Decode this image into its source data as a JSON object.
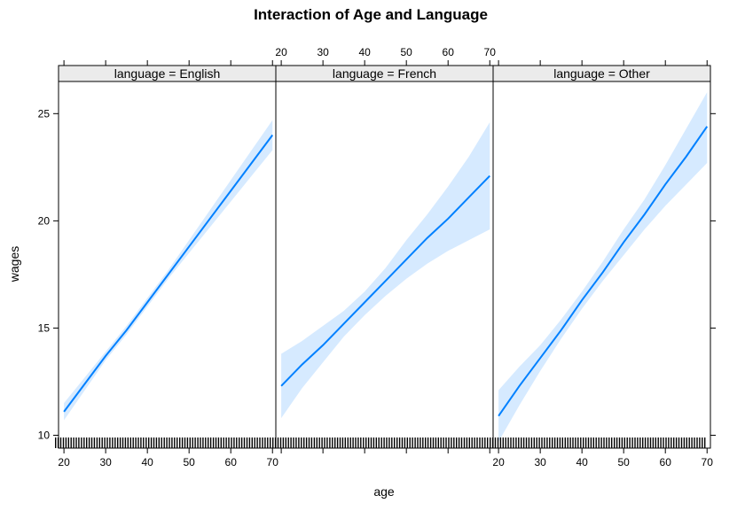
{
  "chart_data": {
    "type": "line",
    "title": "Interaction of Age and Language",
    "xlabel": "age",
    "ylabel": "wages",
    "xlim": [
      18.7,
      70.8
    ],
    "ylim": [
      9.4,
      26.5
    ],
    "x_ticks": [
      20,
      30,
      40,
      50,
      60,
      70
    ],
    "x_tick_labels": [
      "20",
      "30",
      "40",
      "50",
      "60",
      "70"
    ],
    "y_ticks": [
      10,
      15,
      20,
      25
    ],
    "y_tick_labels": [
      "10",
      "15",
      "20",
      "25"
    ],
    "grid": false,
    "line_color": "#0080ff",
    "band_color": "#d6eaff",
    "rug": true,
    "panels": [
      {
        "strip": "language = English",
        "x": [
          20,
          25,
          30,
          35,
          40,
          45,
          50,
          55,
          60,
          65,
          70
        ],
        "y": [
          11.1,
          12.4,
          13.7,
          14.9,
          16.2,
          17.5,
          18.8,
          20.1,
          21.4,
          22.7,
          24.0
        ],
        "lower": [
          10.7,
          12.1,
          13.5,
          14.7,
          16.0,
          17.3,
          18.5,
          19.7,
          20.9,
          22.1,
          23.3
        ],
        "upper": [
          11.5,
          12.7,
          13.9,
          15.1,
          16.4,
          17.7,
          19.1,
          20.5,
          21.9,
          23.3,
          24.7
        ]
      },
      {
        "strip": "language = French",
        "x": [
          20,
          25,
          30,
          35,
          40,
          45,
          50,
          55,
          60,
          65,
          70
        ],
        "y": [
          12.3,
          13.3,
          14.2,
          15.2,
          16.2,
          17.2,
          18.2,
          19.2,
          20.1,
          21.1,
          22.1
        ],
        "lower": [
          10.8,
          12.2,
          13.4,
          14.6,
          15.6,
          16.5,
          17.3,
          18.0,
          18.6,
          19.1,
          19.6
        ],
        "upper": [
          13.8,
          14.4,
          15.1,
          15.8,
          16.7,
          17.8,
          19.1,
          20.3,
          21.6,
          23.0,
          24.6
        ]
      },
      {
        "strip": "language = Other",
        "x": [
          20,
          25,
          30,
          35,
          40,
          45,
          50,
          55,
          60,
          65,
          70
        ],
        "y": [
          10.9,
          12.3,
          13.6,
          14.9,
          16.3,
          17.6,
          19.0,
          20.3,
          21.7,
          23.0,
          24.4
        ],
        "lower": [
          9.7,
          11.4,
          13.0,
          14.5,
          15.9,
          17.2,
          18.4,
          19.6,
          20.7,
          21.7,
          22.7
        ],
        "upper": [
          12.1,
          13.2,
          14.2,
          15.4,
          16.7,
          18.1,
          19.6,
          21.0,
          22.6,
          24.3,
          26.0
        ]
      }
    ]
  }
}
